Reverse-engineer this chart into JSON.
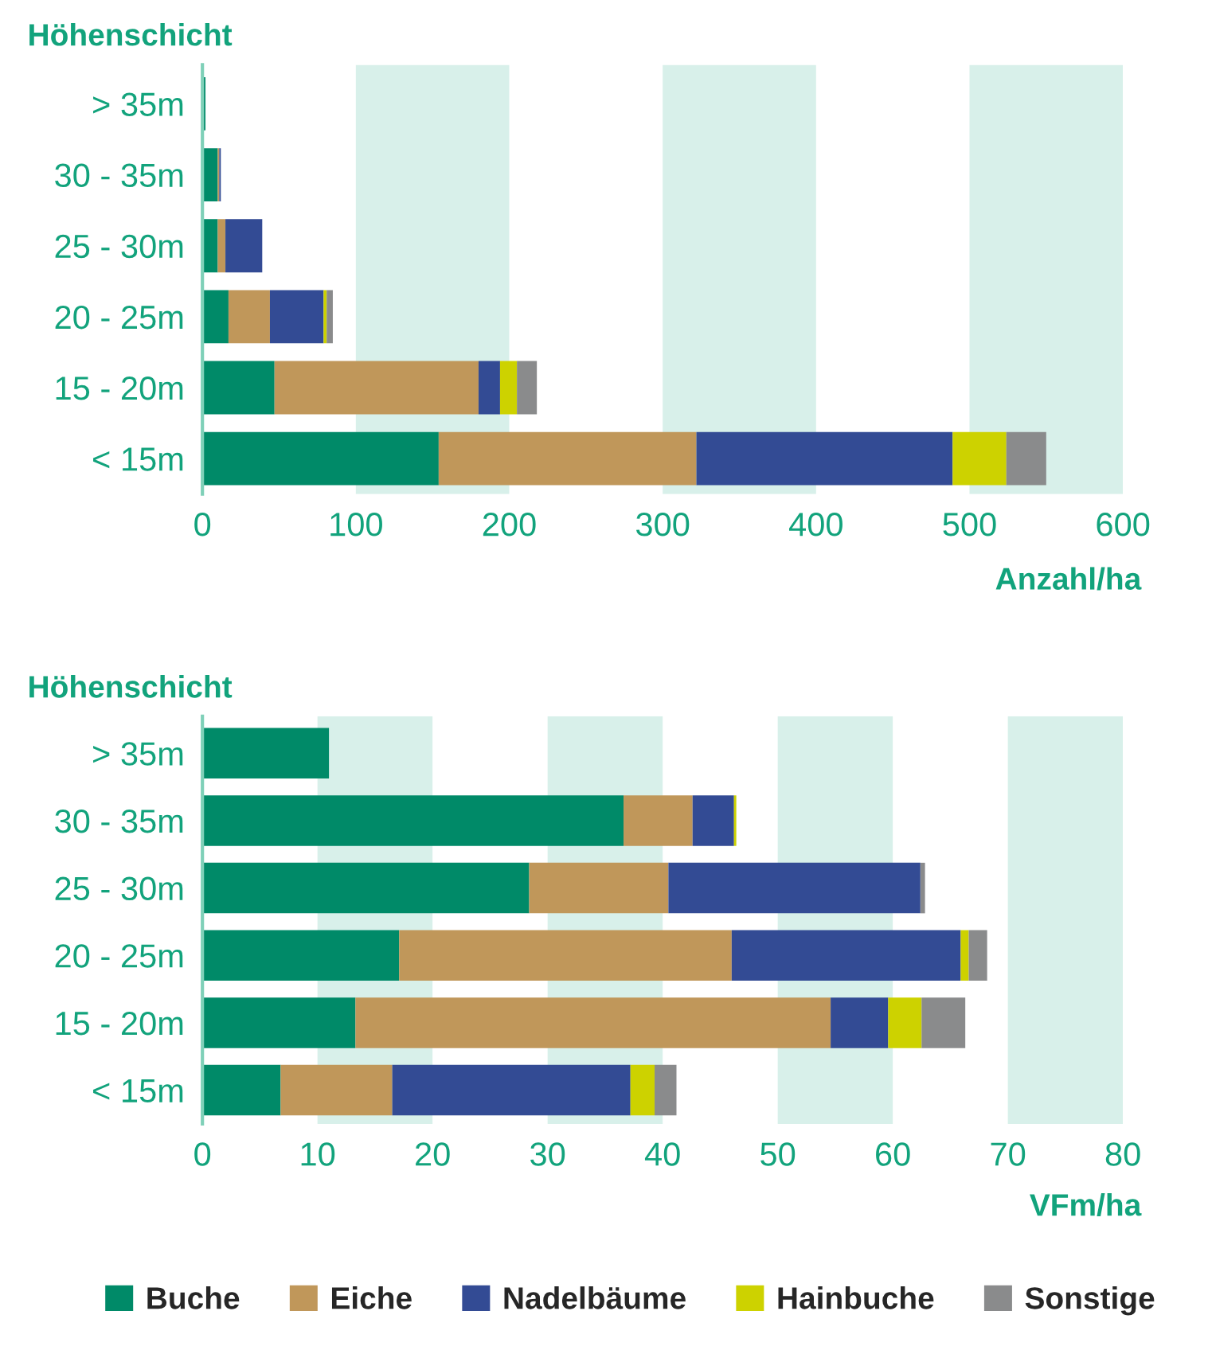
{
  "chart_data": [
    {
      "type": "bar",
      "orientation": "horizontal",
      "stacked": true,
      "ylabel": "Höhenschicht",
      "xlabel": "Anzahl/ha",
      "categories": [
        "> 35m",
        "30 - 35m",
        "25 - 30m",
        "20 - 25m",
        "15 - 20m",
        "< 15m"
      ],
      "series": [
        {
          "name": "Buche",
          "color": "#008a68",
          "values": [
            2,
            10,
            10,
            17,
            47,
            154
          ]
        },
        {
          "name": "Eiche",
          "color": "#c0975a",
          "values": [
            0,
            1,
            5,
            27,
            133,
            168
          ]
        },
        {
          "name": "Nadelbäume",
          "color": "#334b94",
          "values": [
            0,
            1,
            24,
            35,
            14,
            167
          ]
        },
        {
          "name": "Hainbuche",
          "color": "#cdd200",
          "values": [
            0,
            0,
            0,
            2,
            11,
            35
          ]
        },
        {
          "name": "Sonstige",
          "color": "#8a8b8c",
          "values": [
            0,
            0,
            0,
            4,
            13,
            26
          ]
        }
      ],
      "xlim": [
        0,
        600
      ],
      "xticks": [
        0,
        100,
        200,
        300,
        400,
        500,
        600
      ],
      "bands": [
        {
          "axis": "x",
          "from": 100,
          "to": 200,
          "color": "#d8f0ea"
        },
        {
          "axis": "x",
          "from": 300,
          "to": 400,
          "color": "#d8f0ea"
        },
        {
          "axis": "x",
          "from": 500,
          "to": 600,
          "color": "#d8f0ea"
        }
      ],
      "legend": "bottom"
    },
    {
      "type": "bar",
      "orientation": "horizontal",
      "stacked": true,
      "ylabel": "Höhenschicht",
      "xlabel": "VFm/ha",
      "categories": [
        "> 35m",
        "30 - 35m",
        "25 - 30m",
        "20 - 25m",
        "15 - 20m",
        "< 15m"
      ],
      "series": [
        {
          "name": "Buche",
          "color": "#008a68",
          "values": [
            11,
            36.6,
            28.4,
            17.1,
            13.3,
            6.8
          ]
        },
        {
          "name": "Eiche",
          "color": "#c0975a",
          "values": [
            0,
            6.0,
            12.1,
            28.9,
            41.3,
            9.7
          ]
        },
        {
          "name": "Nadelbäume",
          "color": "#334b94",
          "values": [
            0,
            3.6,
            21.9,
            19.9,
            5.0,
            20.7
          ]
        },
        {
          "name": "Hainbuche",
          "color": "#cdd200",
          "values": [
            0,
            0.2,
            0,
            0.7,
            2.9,
            2.1
          ]
        },
        {
          "name": "Sonstige",
          "color": "#8a8b8c",
          "values": [
            0,
            0,
            0.4,
            1.6,
            3.8,
            1.9
          ]
        }
      ],
      "xlim": [
        0,
        80
      ],
      "xticks": [
        0,
        10,
        20,
        30,
        40,
        50,
        60,
        70,
        80
      ],
      "bands": [
        {
          "axis": "x",
          "from": 10,
          "to": 20,
          "color": "#d8f0ea"
        },
        {
          "axis": "x",
          "from": 30,
          "to": 40,
          "color": "#d8f0ea"
        },
        {
          "axis": "x",
          "from": 50,
          "to": 60,
          "color": "#d8f0ea"
        },
        {
          "axis": "x",
          "from": 70,
          "to": 80,
          "color": "#d8f0ea"
        }
      ],
      "legend": "bottom"
    }
  ]
}
